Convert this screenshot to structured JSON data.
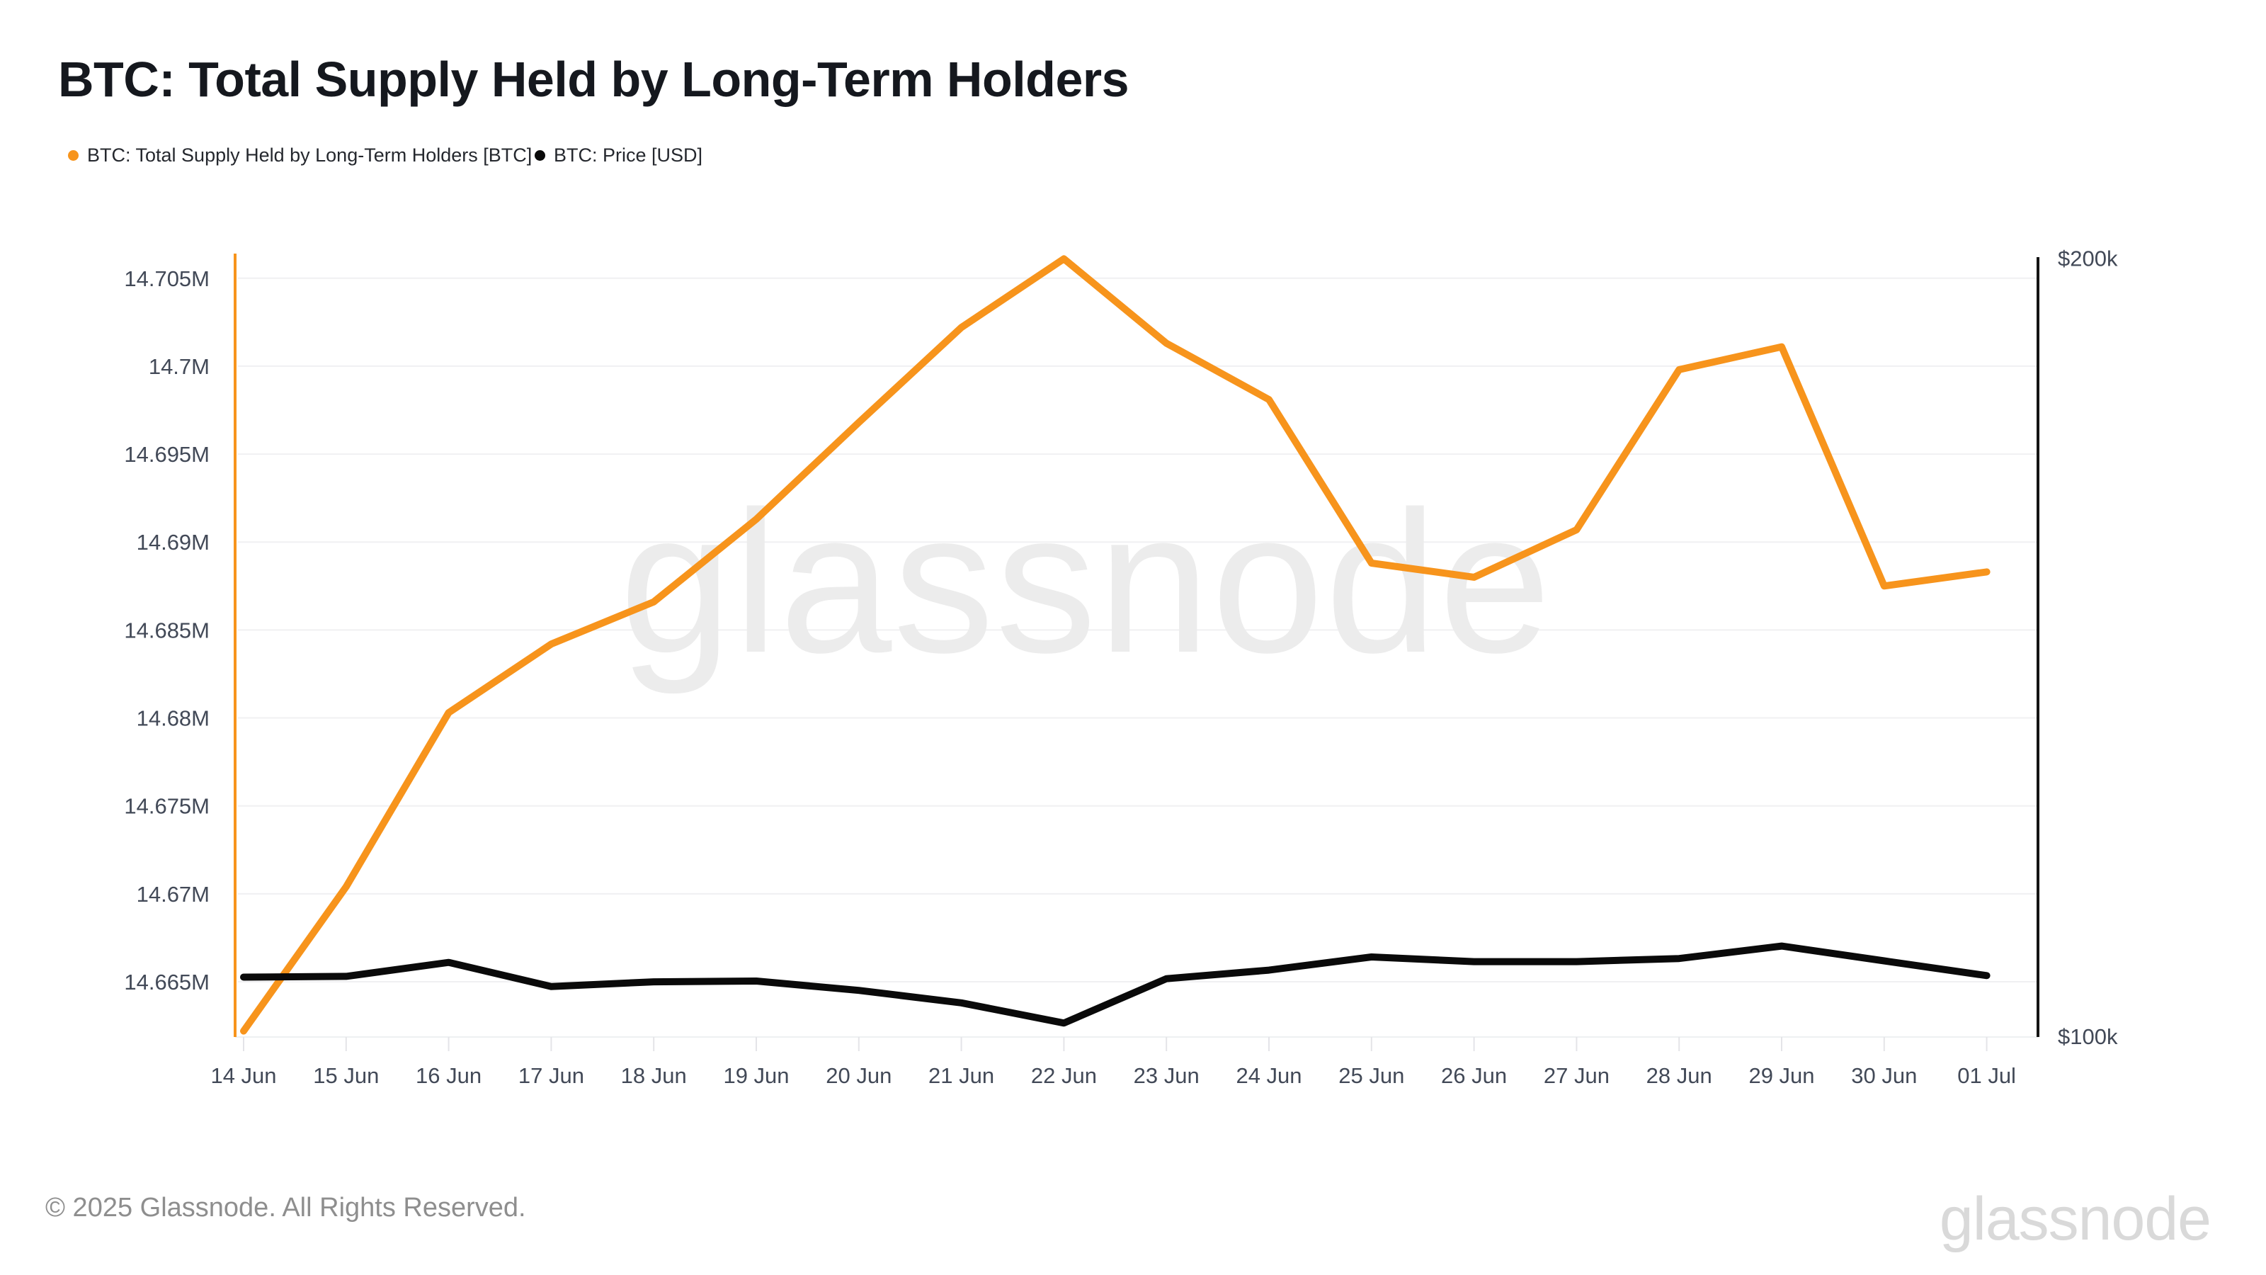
{
  "chart_data": {
    "type": "line",
    "title": "BTC: Total Supply Held by Long-Term Holders",
    "x": [
      "14 Jun",
      "15 Jun",
      "16 Jun",
      "17 Jun",
      "18 Jun",
      "19 Jun",
      "20 Jun",
      "21 Jun",
      "22 Jun",
      "23 Jun",
      "24 Jun",
      "25 Jun",
      "26 Jun",
      "27 Jun",
      "28 Jun",
      "29 Jun",
      "30 Jun",
      "01 Jul"
    ],
    "series": [
      {
        "name": "BTC: Total Supply Held by Long-Term Holders [BTC]",
        "axis": "left",
        "color": "#f7941c",
        "unit": "M BTC",
        "values": [
          14.6622,
          14.6704,
          14.6803,
          14.6842,
          14.6866,
          14.6913,
          14.6968,
          14.7022,
          14.7061,
          14.7013,
          14.6981,
          14.6888,
          14.688,
          14.6907,
          14.6998,
          14.7011,
          14.6875,
          14.6883
        ]
      },
      {
        "name": "BTC: Price [USD]",
        "axis": "right",
        "color": "#0a0a0a",
        "unit": "USD",
        "values": [
          107600,
          107700,
          109500,
          106400,
          107000,
          107100,
          105900,
          104300,
          101700,
          107400,
          108500,
          110200,
          109600,
          109600,
          110000,
          111600,
          109700,
          107800
        ]
      }
    ],
    "left_axis": {
      "tick_labels": [
        "14.705M",
        "14.7M",
        "14.695M",
        "14.69M",
        "14.685M",
        "14.68M",
        "14.675M",
        "14.67M",
        "14.665M"
      ],
      "tick_values": [
        14.705,
        14.7,
        14.695,
        14.69,
        14.685,
        14.68,
        14.675,
        14.67,
        14.665
      ],
      "range": [
        14.6619,
        14.7064
      ]
    },
    "right_axis": {
      "tick_labels": [
        "$200k",
        "$100k"
      ],
      "tick_values": [
        200000,
        100000
      ],
      "range": [
        100000,
        200600
      ]
    },
    "grid": "horizontal",
    "legend_position": "top-left"
  },
  "watermark": "glassnode",
  "footer": {
    "copyright": "© 2025 Glassnode. All Rights Reserved.",
    "brand": "glassnode"
  }
}
